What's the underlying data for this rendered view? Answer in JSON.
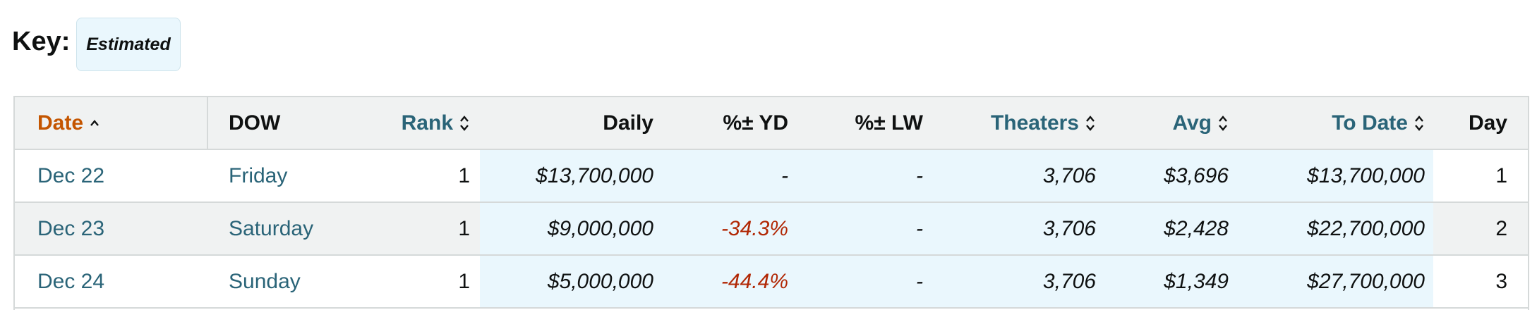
{
  "key": {
    "label": "Key:",
    "badge": "Estimated"
  },
  "table": {
    "headers": [
      "Date",
      "DOW",
      "Rank",
      "Daily",
      "%± YD",
      "%± LW",
      "Theaters",
      "Avg",
      "To Date",
      "Day"
    ],
    "rows": [
      [
        "Dec 22",
        "Friday",
        "1",
        "$13,700,000",
        "-",
        "-",
        "3,706",
        "$3,696",
        "$13,700,000",
        "1"
      ],
      [
        "Dec 23",
        "Saturday",
        "1",
        "$9,000,000",
        "-34.3%",
        "-",
        "3,706",
        "$2,428",
        "$22,700,000",
        "2"
      ],
      [
        "Dec 24",
        "Sunday",
        "1",
        "$5,000,000",
        "-44.4%",
        "-",
        "3,706",
        "$1,349",
        "$27,700,000",
        "3"
      ]
    ]
  }
}
